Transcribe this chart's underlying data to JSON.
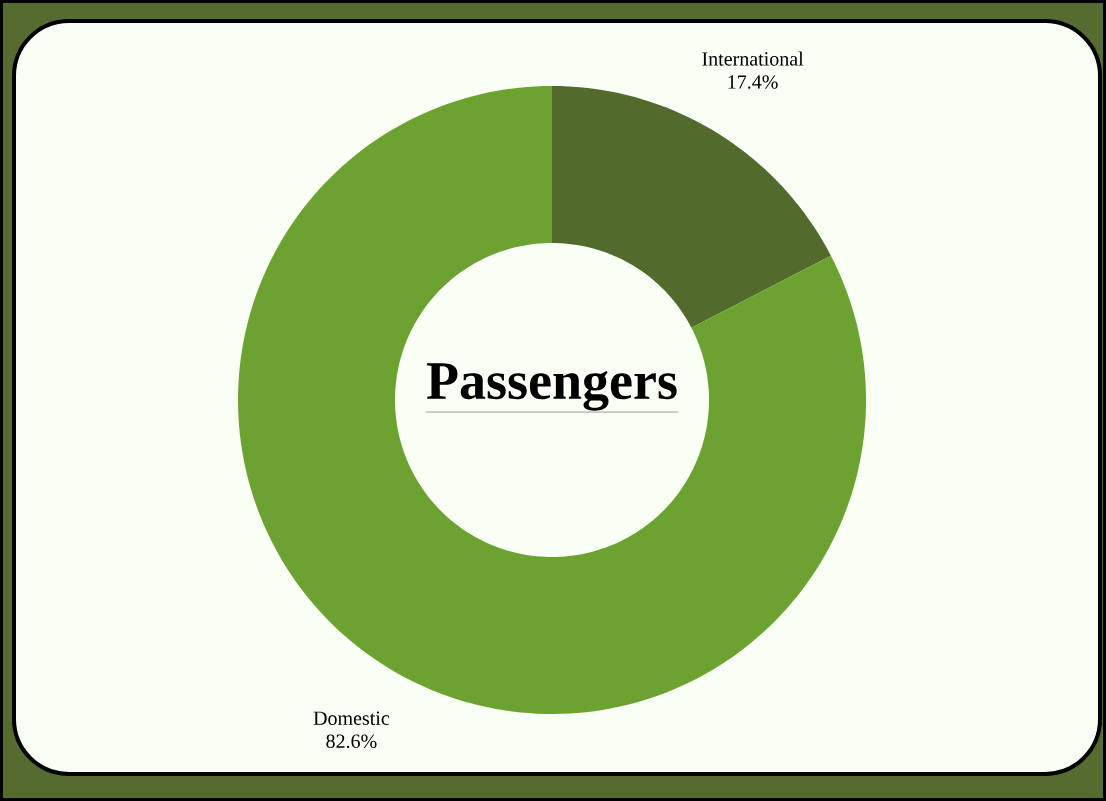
{
  "chart_data": {
    "type": "donut",
    "title": "Passengers",
    "categories": [
      "International",
      "Domestic"
    ],
    "values": [
      17.4,
      82.6
    ],
    "colors": [
      "#526b2d",
      "#6ca22f"
    ],
    "value_labels": [
      "17.4%",
      "82.6%"
    ]
  }
}
